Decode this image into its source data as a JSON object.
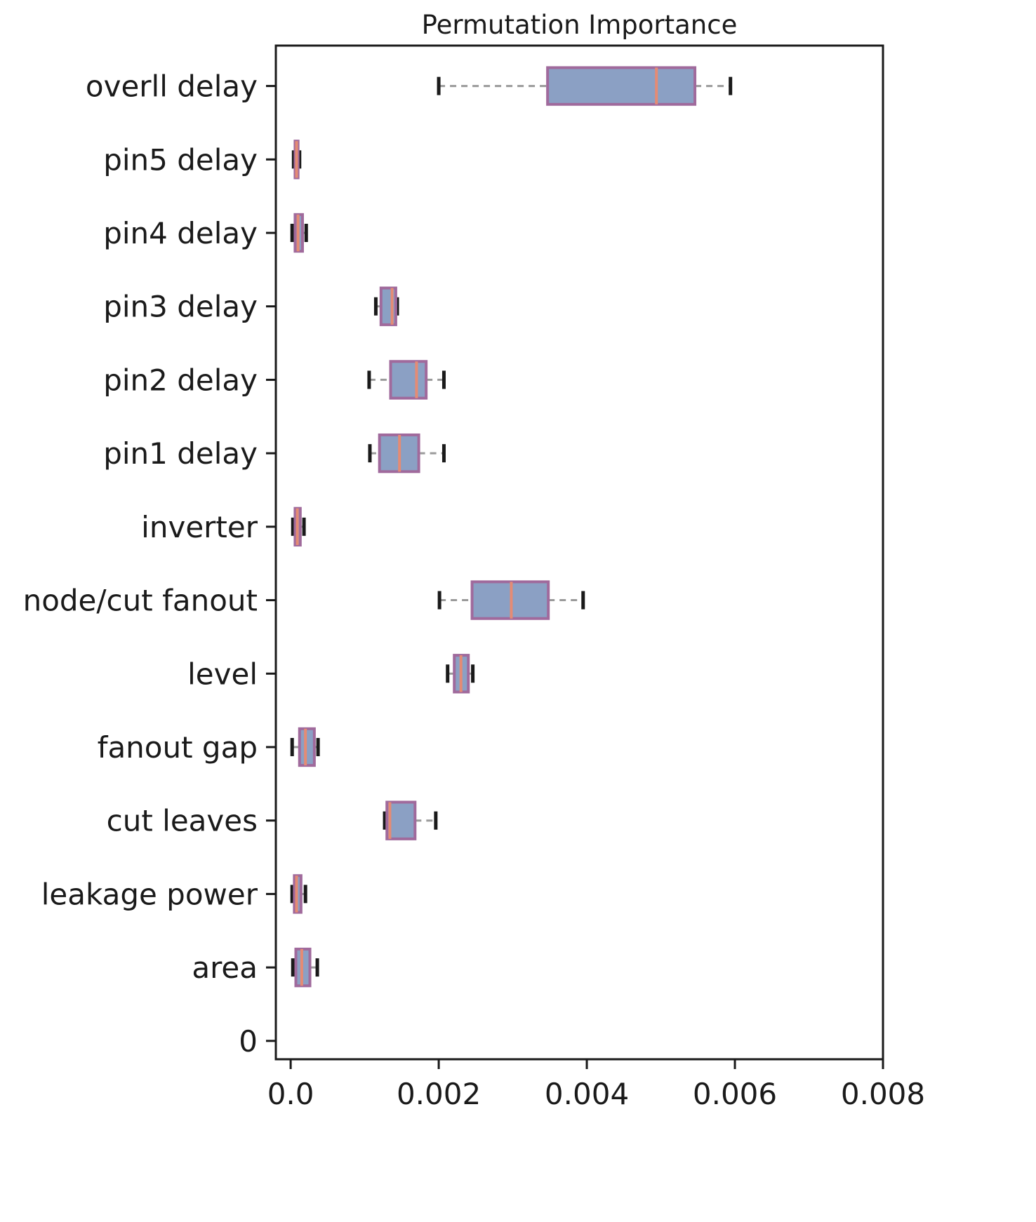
{
  "chart_data": {
    "type": "boxplot",
    "orientation": "horizontal",
    "title": "Permutation Importance",
    "xlabel": "",
    "ylabel": "",
    "grid": false,
    "legend": null,
    "xlim": [
      -0.0002,
      0.008
    ],
    "xticks": [
      0,
      0.002,
      0.004,
      0.006,
      0.008
    ],
    "xtick_labels": [
      "0.0",
      "0.002",
      "0.004",
      "0.006",
      "0.008"
    ],
    "y_origin_label": "0",
    "categories_top_to_bottom": [
      "overll delay",
      "pin5 delay",
      "pin4 delay",
      "pin3 delay",
      "pin2 delay",
      "pin1 delay",
      "inverter",
      "node/cut fanout",
      "level",
      "fanout gap",
      "cut leaves",
      "leakage power",
      "area"
    ],
    "boxes": [
      {
        "label": "overll delay",
        "whislo": 0.002,
        "q1": 0.00347,
        "med": 0.00494,
        "q3": 0.00546,
        "whishi": 0.00594
      },
      {
        "label": "pin5 delay",
        "whislo": 4e-05,
        "q1": 6e-05,
        "med": 8e-05,
        "q3": 0.0001,
        "whishi": 0.00012
      },
      {
        "label": "pin4 delay",
        "whislo": 2e-05,
        "q1": 6e-05,
        "med": 0.0001,
        "q3": 0.00016,
        "whishi": 0.00021
      },
      {
        "label": "pin3 delay",
        "whislo": 0.00115,
        "q1": 0.00122,
        "med": 0.00137,
        "q3": 0.00142,
        "whishi": 0.00144
      },
      {
        "label": "pin2 delay",
        "whislo": 0.00106,
        "q1": 0.00135,
        "med": 0.0017,
        "q3": 0.00183,
        "whishi": 0.00207
      },
      {
        "label": "pin1 delay",
        "whislo": 0.00107,
        "q1": 0.0012,
        "med": 0.00147,
        "q3": 0.00173,
        "whishi": 0.00207
      },
      {
        "label": "inverter",
        "whislo": 3e-05,
        "q1": 6e-05,
        "med": 9e-05,
        "q3": 0.00013,
        "whishi": 0.00018
      },
      {
        "label": "node/cut fanout",
        "whislo": 0.00201,
        "q1": 0.00245,
        "med": 0.00298,
        "q3": 0.00348,
        "whishi": 0.00395
      },
      {
        "label": "level",
        "whislo": 0.00212,
        "q1": 0.00221,
        "med": 0.0023,
        "q3": 0.0024,
        "whishi": 0.00246
      },
      {
        "label": "fanout gap",
        "whislo": 2e-05,
        "q1": 0.00012,
        "med": 0.0002,
        "q3": 0.00032,
        "whishi": 0.00037
      },
      {
        "label": "cut leaves",
        "whislo": 0.00127,
        "q1": 0.0013,
        "med": 0.00134,
        "q3": 0.00168,
        "whishi": 0.00196
      },
      {
        "label": "leakage power",
        "whislo": 2e-05,
        "q1": 5e-05,
        "med": 8e-05,
        "q3": 0.00014,
        "whishi": 0.0002
      },
      {
        "label": "area",
        "whislo": 3e-05,
        "q1": 7e-05,
        "med": 0.00015,
        "q3": 0.00026,
        "whishi": 0.00036
      }
    ],
    "colors": {
      "box_fill": "#8ba0c4",
      "box_edge": "#a06a9c",
      "median": "#e58b74",
      "whisker": "#9a9a9a",
      "cap": "#1a1a1a",
      "axis": "#1a1a1a",
      "text": "#1a1a1a"
    }
  }
}
